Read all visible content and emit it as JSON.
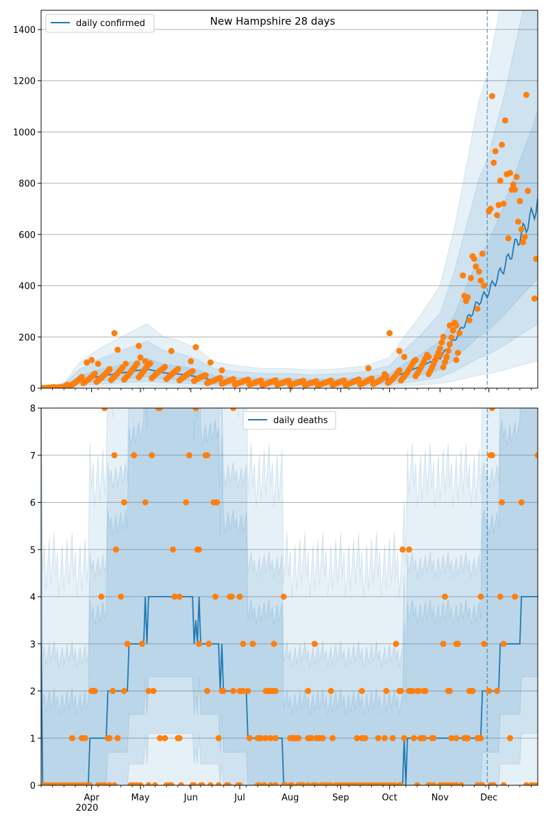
{
  "chart_data": [
    {
      "type": "line",
      "title": "New Hampshire 28 days",
      "legend": {
        "placement": "top-left",
        "entries": [
          "daily confirmed"
        ]
      },
      "grid": true,
      "ylim": [
        0,
        1475
      ],
      "yticks": [
        0,
        200,
        400,
        600,
        800,
        1000,
        1200,
        1400
      ],
      "x_range": [
        "2020-03-01",
        "2020-12-31"
      ],
      "forecast_start": "2020-11-30",
      "colors": {
        "line": "#1f77b4",
        "points": "#ff7f0e",
        "band": "#1f77b4",
        "forecast_line": "#1f77b4"
      },
      "band_scale": [
        0.15,
        0.35,
        0.6,
        1.5,
        2.4,
        3.3
      ],
      "series_line_name": "daily confirmed",
      "line_knots": [
        [
          "2020-03-01",
          0
        ],
        [
          "2020-03-15",
          5
        ],
        [
          "2020-03-25",
          30
        ],
        [
          "2020-04-05",
          45
        ],
        [
          "2020-04-15",
          55
        ],
        [
          "2020-04-25",
          65
        ],
        [
          "2020-05-05",
          75
        ],
        [
          "2020-05-15",
          60
        ],
        [
          "2020-05-25",
          55
        ],
        [
          "2020-06-05",
          45
        ],
        [
          "2020-06-15",
          30
        ],
        [
          "2020-07-01",
          25
        ],
        [
          "2020-07-15",
          22
        ],
        [
          "2020-08-01",
          22
        ],
        [
          "2020-08-15",
          20
        ],
        [
          "2020-09-01",
          22
        ],
        [
          "2020-09-15",
          25
        ],
        [
          "2020-10-01",
          35
        ],
        [
          "2020-10-10",
          60
        ],
        [
          "2020-10-20",
          85
        ],
        [
          "2020-11-01",
          120
        ],
        [
          "2020-11-10",
          190
        ],
        [
          "2020-11-18",
          270
        ],
        [
          "2020-11-25",
          340
        ],
        [
          "2020-11-30",
          370
        ],
        [
          "2020-12-10",
          470
        ],
        [
          "2020-12-20",
          590
        ],
        [
          "2020-12-28",
          680
        ],
        [
          "2020-12-31",
          720
        ]
      ],
      "points": [
        [
          "2020-03-29",
          100
        ],
        [
          "2020-04-01",
          110
        ],
        [
          "2020-04-05",
          95
        ],
        [
          "2020-04-12",
          75
        ],
        [
          "2020-04-15",
          215
        ],
        [
          "2020-04-17",
          150
        ],
        [
          "2020-04-22",
          95
        ],
        [
          "2020-04-30",
          165
        ],
        [
          "2020-05-01",
          120
        ],
        [
          "2020-05-04",
          105
        ],
        [
          "2020-05-20",
          145
        ],
        [
          "2020-06-01",
          105
        ],
        [
          "2020-06-04",
          160
        ],
        [
          "2020-06-13",
          100
        ],
        [
          "2020-06-20",
          70
        ],
        [
          "2020-09-18",
          78
        ],
        [
          "2020-09-28",
          55
        ],
        [
          "2020-10-01",
          215
        ],
        [
          "2020-10-07",
          145
        ],
        [
          "2020-10-10",
          122
        ],
        [
          "2020-10-17",
          110
        ],
        [
          "2020-10-25",
          122
        ],
        [
          "2020-11-01",
          130
        ],
        [
          "2020-11-03",
          200
        ],
        [
          "2020-11-05",
          120
        ],
        [
          "2020-11-07",
          245
        ],
        [
          "2020-11-09",
          225
        ],
        [
          "2020-11-11",
          245
        ],
        [
          "2020-11-13",
          215
        ],
        [
          "2020-11-15",
          440
        ],
        [
          "2020-11-16",
          360
        ],
        [
          "2020-11-17",
          340
        ],
        [
          "2020-11-18",
          355
        ],
        [
          "2020-11-19",
          265
        ],
        [
          "2020-11-20",
          430
        ],
        [
          "2020-11-21",
          515
        ],
        [
          "2020-11-22",
          505
        ],
        [
          "2020-11-23",
          475
        ],
        [
          "2020-11-24",
          310
        ],
        [
          "2020-11-25",
          455
        ],
        [
          "2020-11-26",
          420
        ],
        [
          "2020-11-27",
          525
        ],
        [
          "2020-11-28",
          400
        ],
        [
          "2020-12-01",
          690
        ],
        [
          "2020-12-02",
          700
        ],
        [
          "2020-12-03",
          1140
        ],
        [
          "2020-12-04",
          880
        ],
        [
          "2020-12-05",
          925
        ],
        [
          "2020-12-06",
          675
        ],
        [
          "2020-12-07",
          715
        ],
        [
          "2020-12-08",
          810
        ],
        [
          "2020-12-09",
          950
        ],
        [
          "2020-12-10",
          720
        ],
        [
          "2020-12-11",
          1045
        ],
        [
          "2020-12-12",
          835
        ],
        [
          "2020-12-13",
          585
        ],
        [
          "2020-12-14",
          840
        ],
        [
          "2020-12-15",
          775
        ],
        [
          "2020-12-16",
          795
        ],
        [
          "2020-12-17",
          775
        ],
        [
          "2020-12-18",
          825
        ],
        [
          "2020-12-19",
          650
        ],
        [
          "2020-12-20",
          730
        ],
        [
          "2020-12-21",
          620
        ],
        [
          "2020-12-22",
          570
        ],
        [
          "2020-12-23",
          590
        ],
        [
          "2020-12-24",
          1145
        ],
        [
          "2020-12-25",
          770
        ],
        [
          "2020-12-29",
          350
        ],
        [
          "2020-12-30",
          505
        ]
      ]
    },
    {
      "type": "line",
      "title": "",
      "legend": {
        "placement": "top-center",
        "entries": [
          "daily deaths"
        ]
      },
      "grid": true,
      "ylim": [
        0,
        8
      ],
      "yticks": [
        0,
        1,
        2,
        3,
        4,
        5,
        6,
        7,
        8
      ],
      "x_range": [
        "2020-03-01",
        "2020-12-31"
      ],
      "forecast_start": "2020-11-30",
      "xtick_labels": [
        "Apr",
        "May",
        "Jun",
        "Jul",
        "Aug",
        "Sep",
        "Oct",
        "Nov",
        "Dec"
      ],
      "xtick_dates": [
        "2020-04-01",
        "2020-05-01",
        "2020-06-01",
        "2020-07-01",
        "2020-08-01",
        "2020-09-01",
        "2020-10-01",
        "2020-11-01",
        "2020-12-01"
      ],
      "year_label": "2020",
      "colors": {
        "line": "#1f77b4",
        "points": "#ff7f0e",
        "band": "#1f77b4",
        "forecast_line": "#1f77b4"
      },
      "series_line_name": "daily deaths",
      "line_knots": [
        [
          "2020-03-01",
          3
        ],
        [
          "2020-03-02",
          0
        ],
        [
          "2020-03-30",
          0
        ],
        [
          "2020-03-31",
          1
        ],
        [
          "2020-04-10",
          1
        ],
        [
          "2020-04-11",
          2
        ],
        [
          "2020-04-23",
          2
        ],
        [
          "2020-04-24",
          3
        ],
        [
          "2020-05-03",
          3
        ],
        [
          "2020-05-04",
          4
        ],
        [
          "2020-05-05",
          3
        ],
        [
          "2020-05-06",
          4
        ],
        [
          "2020-06-02",
          4
        ],
        [
          "2020-06-03",
          3
        ],
        [
          "2020-06-04",
          3.5
        ],
        [
          "2020-06-05",
          3
        ],
        [
          "2020-06-06",
          4
        ],
        [
          "2020-06-07",
          3
        ],
        [
          "2020-06-18",
          3
        ],
        [
          "2020-06-19",
          2
        ],
        [
          "2020-06-20",
          3
        ],
        [
          "2020-06-21",
          2
        ],
        [
          "2020-07-05",
          2
        ],
        [
          "2020-07-06",
          1
        ],
        [
          "2020-07-27",
          1
        ],
        [
          "2020-07-28",
          0
        ],
        [
          "2020-10-09",
          0
        ],
        [
          "2020-10-10",
          1
        ],
        [
          "2020-10-11",
          0
        ],
        [
          "2020-10-12",
          1
        ],
        [
          "2020-11-26",
          1
        ],
        [
          "2020-11-27",
          2
        ],
        [
          "2020-12-07",
          2
        ],
        [
          "2020-12-08",
          3
        ],
        [
          "2020-12-20",
          3
        ],
        [
          "2020-12-21",
          4
        ],
        [
          "2020-12-31",
          4
        ]
      ],
      "point_rows": [
        {
          "y": 8,
          "dates": [
            "2020-04-09",
            "2020-05-12",
            "2020-05-13",
            "2020-06-04",
            "2020-06-27",
            "2020-12-03"
          ]
        },
        {
          "y": 7,
          "dates": [
            "2020-04-15",
            "2020-04-27",
            "2020-05-08",
            "2020-05-31",
            "2020-06-10",
            "2020-06-11",
            "2020-12-02",
            "2020-12-03",
            "2020-12-31"
          ]
        },
        {
          "y": 6,
          "dates": [
            "2020-04-21",
            "2020-05-04",
            "2020-05-29",
            "2020-06-15",
            "2020-06-17",
            "2020-12-09",
            "2020-12-21"
          ]
        },
        {
          "y": 5,
          "dates": [
            "2020-04-16",
            "2020-05-21",
            "2020-06-05",
            "2020-06-06",
            "2020-10-09",
            "2020-10-13"
          ]
        },
        {
          "y": 4,
          "dates": [
            "2020-04-07",
            "2020-04-19",
            "2020-05-22",
            "2020-05-25",
            "2020-06-16",
            "2020-06-25",
            "2020-06-26",
            "2020-07-01",
            "2020-07-28",
            "2020-11-04",
            "2020-11-26",
            "2020-12-08",
            "2020-12-17"
          ]
        },
        {
          "y": 3,
          "dates": [
            "2020-04-23",
            "2020-05-02",
            "2020-06-06",
            "2020-06-12",
            "2020-07-03",
            "2020-07-09",
            "2020-07-22",
            "2020-08-16",
            "2020-10-05",
            "2020-11-03",
            "2020-11-11",
            "2020-11-12",
            "2020-11-28",
            "2020-12-10"
          ]
        },
        {
          "y": 2,
          "dates": [
            "2020-04-01",
            "2020-04-02",
            "2020-04-03",
            "2020-04-14",
            "2020-04-21",
            "2020-05-06",
            "2020-05-09",
            "2020-06-11",
            "2020-06-20",
            "2020-06-21",
            "2020-06-27",
            "2020-07-01",
            "2020-07-02",
            "2020-07-03",
            "2020-07-06",
            "2020-07-17",
            "2020-07-18",
            "2020-07-19",
            "2020-07-20",
            "2020-07-21",
            "2020-07-22",
            "2020-07-23",
            "2020-08-12",
            "2020-08-26",
            "2020-09-14",
            "2020-09-29",
            "2020-10-07",
            "2020-10-08",
            "2020-10-13",
            "2020-10-14",
            "2020-10-15",
            "2020-10-18",
            "2020-10-19",
            "2020-10-22",
            "2020-10-23",
            "2020-11-06",
            "2020-11-07",
            "2020-11-19",
            "2020-11-20",
            "2020-11-21",
            "2020-12-01",
            "2020-12-06"
          ]
        },
        {
          "y": 1,
          "dates": [
            "2020-03-20",
            "2020-03-26",
            "2020-03-28",
            "2020-04-11",
            "2020-04-12",
            "2020-04-17",
            "2020-05-13",
            "2020-05-16",
            "2020-05-24",
            "2020-05-25",
            "2020-06-18",
            "2020-07-07",
            "2020-07-12",
            "2020-07-13",
            "2020-07-14",
            "2020-07-17",
            "2020-07-20",
            "2020-07-23",
            "2020-08-01",
            "2020-08-02",
            "2020-08-03",
            "2020-08-04",
            "2020-08-05",
            "2020-08-06",
            "2020-08-12",
            "2020-08-13",
            "2020-08-14",
            "2020-08-17",
            "2020-08-18",
            "2020-08-19",
            "2020-08-21",
            "2020-08-27",
            "2020-09-11",
            "2020-09-14",
            "2020-09-16",
            "2020-09-24",
            "2020-09-28",
            "2020-10-03",
            "2020-10-10",
            "2020-10-16",
            "2020-10-20",
            "2020-10-21",
            "2020-10-22",
            "2020-10-27",
            "2020-10-28",
            "2020-11-08",
            "2020-11-11",
            "2020-11-16",
            "2020-11-17",
            "2020-11-18",
            "2020-11-24",
            "2020-11-25",
            "2020-11-26",
            "2020-12-14"
          ]
        },
        {
          "y": 0,
          "dates": [
            "2020-03-01",
            "2020-03-03",
            "2020-03-05",
            "2020-03-07",
            "2020-03-09",
            "2020-03-11",
            "2020-03-13",
            "2020-03-15",
            "2020-03-17",
            "2020-03-19",
            "2020-03-21",
            "2020-03-23",
            "2020-03-25",
            "2020-03-27",
            "2020-03-29",
            "2020-03-31",
            "2020-04-05",
            "2020-04-07",
            "2020-04-09",
            "2020-04-12",
            "2020-04-15",
            "2020-04-25",
            "2020-04-27",
            "2020-04-29",
            "2020-05-01",
            "2020-05-06",
            "2020-05-10",
            "2020-05-17",
            "2020-05-19",
            "2020-05-20",
            "2020-05-26",
            "2020-06-02",
            "2020-06-03",
            "2020-06-07",
            "2020-06-08",
            "2020-06-13",
            "2020-06-18",
            "2020-06-23",
            "2020-06-24",
            "2020-06-30",
            "2020-07-01",
            "2020-07-12",
            "2020-07-13",
            "2020-07-16",
            "2020-07-20",
            "2020-07-23",
            "2020-07-28",
            "2020-07-29",
            "2020-08-01",
            "2020-08-02",
            "2020-08-06",
            "2020-08-07",
            "2020-08-08",
            "2020-08-09",
            "2020-08-12",
            "2020-08-15",
            "2020-08-17",
            "2020-08-20",
            "2020-08-21",
            "2020-08-22",
            "2020-08-24",
            "2020-08-26",
            "2020-08-29",
            "2020-08-31",
            "2020-09-02",
            "2020-09-04",
            "2020-09-06",
            "2020-09-08",
            "2020-09-10",
            "2020-09-12",
            "2020-09-14",
            "2020-09-16",
            "2020-09-18",
            "2020-09-20",
            "2020-09-22",
            "2020-09-24",
            "2020-09-26",
            "2020-09-28",
            "2020-09-30",
            "2020-10-02",
            "2020-10-04",
            "2020-10-07",
            "2020-10-08",
            "2020-10-18",
            "2020-10-25",
            "2020-10-26",
            "2020-10-28",
            "2020-11-01",
            "2020-11-03",
            "2020-11-05",
            "2020-11-07",
            "2020-11-09",
            "2020-11-11",
            "2020-11-14",
            "2020-11-24",
            "2020-11-26",
            "2020-11-27",
            "2020-12-02",
            "2020-12-04",
            "2020-12-10",
            "2020-12-24",
            "2020-12-27",
            "2020-12-29",
            "2020-12-31"
          ]
        }
      ]
    }
  ]
}
